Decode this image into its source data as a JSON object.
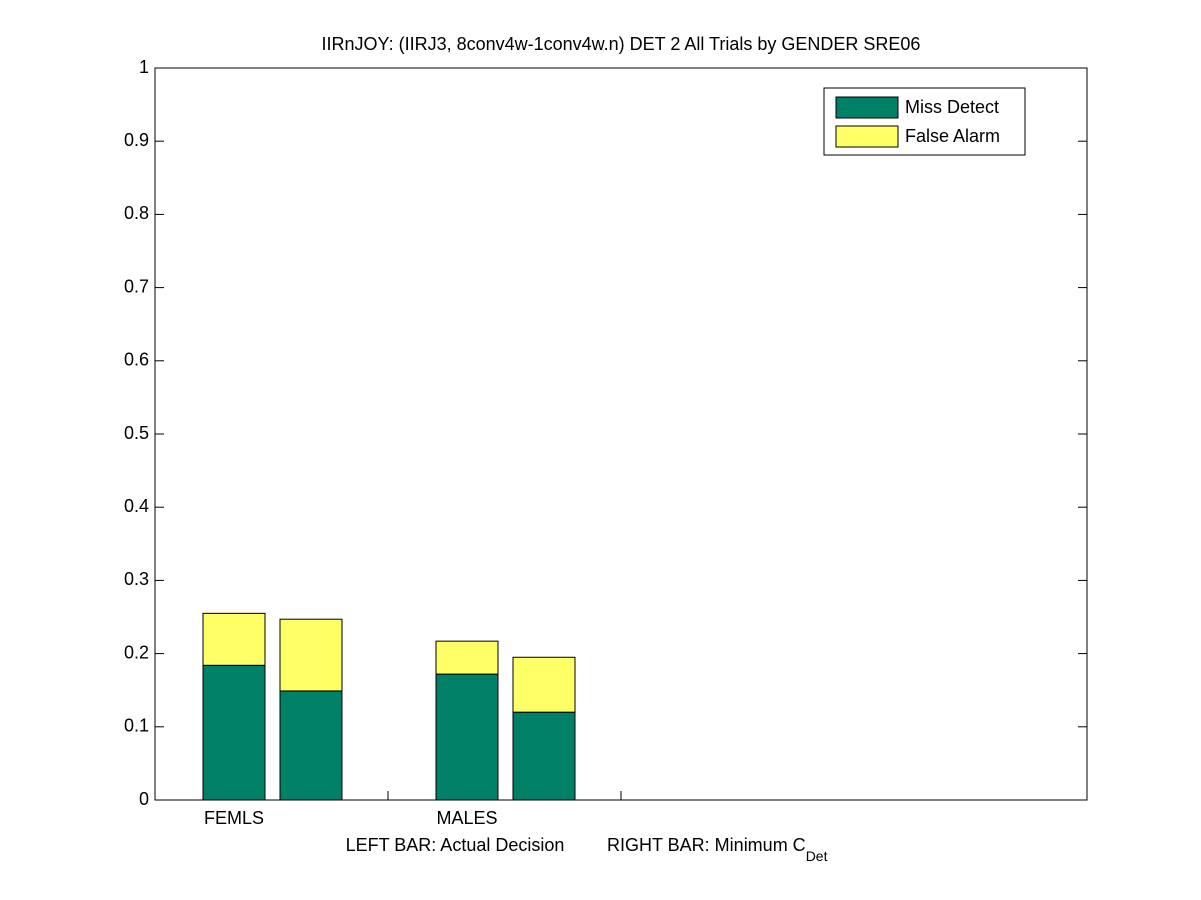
{
  "chart_data": {
    "type": "stacked_bar_pairs",
    "title": "IIRnJOY: (IIRJ3, 8conv4w-1conv4w.n) DET 2 All Trials by GENDER SRE06",
    "categories": [
      "FEMLS",
      "MALES"
    ],
    "xlabel": {
      "left": "LEFT BAR: Actual Decision",
      "right": "RIGHT BAR: Minimum C",
      "sub": "Det"
    },
    "series": [
      {
        "name": "Miss Detect",
        "color": "#008066",
        "actual": [
          0.184,
          0.172
        ],
        "minimum": [
          0.149,
          0.12
        ]
      },
      {
        "name": "False Alarm",
        "color": "#ffff66",
        "actual": [
          0.071,
          0.045
        ],
        "minimum": [
          0.098,
          0.075
        ]
      }
    ],
    "ylim": [
      0,
      1
    ],
    "yticks": [
      0,
      0.1,
      0.2,
      0.3,
      0.4,
      0.5,
      0.6,
      0.7,
      0.8,
      0.9,
      1
    ],
    "legend": "upper right"
  }
}
